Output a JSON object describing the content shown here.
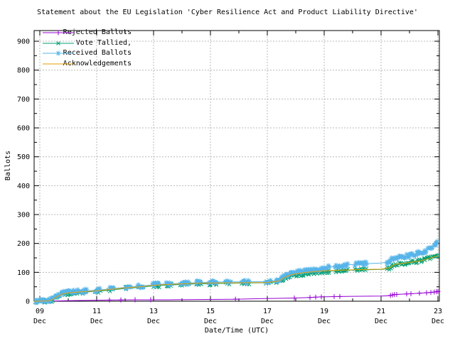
{
  "title": "Statement about the EU Legislation 'Cyber Resilience Act and Product Liability Directive'",
  "chart_data": {
    "type": "line",
    "title": "Statement about the EU Legislation 'Cyber Resilience Act and Product Liability Directive'",
    "xlabel": "Date/Time (UTC)",
    "ylabel": "Ballots",
    "x_unit": "day of December (UTC)",
    "xlim": [
      8.8,
      23.05
    ],
    "ylim": [
      0,
      937
    ],
    "grid": true,
    "grid_color": "#b8b8b8",
    "legend_position": "top-left",
    "x_ticks": [
      {
        "v": 9,
        "lines": [
          "09",
          "Dec"
        ]
      },
      {
        "v": 11,
        "lines": [
          "11",
          "Dec"
        ]
      },
      {
        "v": 13,
        "lines": [
          "13",
          "Dec"
        ]
      },
      {
        "v": 15,
        "lines": [
          "15",
          "Dec"
        ]
      },
      {
        "v": 17,
        "lines": [
          "17",
          "Dec"
        ]
      },
      {
        "v": 19,
        "lines": [
          "19",
          "Dec"
        ]
      },
      {
        "v": 21,
        "lines": [
          "21",
          "Dec"
        ]
      },
      {
        "v": 23,
        "lines": [
          "23",
          "Dec"
        ]
      }
    ],
    "x_minor_ticks": [
      10,
      12,
      14,
      16,
      18,
      20,
      22
    ],
    "y_ticks": [
      {
        "v": 0,
        "label": "0"
      },
      {
        "v": 100,
        "label": "100"
      },
      {
        "v": 200,
        "label": "200"
      },
      {
        "v": 300,
        "label": "300"
      },
      {
        "v": 400,
        "label": "400"
      },
      {
        "v": 500,
        "label": "500"
      },
      {
        "v": 600,
        "label": "600"
      },
      {
        "v": 700,
        "label": "700"
      },
      {
        "v": 800,
        "label": "800"
      },
      {
        "v": 900,
        "label": "900"
      }
    ],
    "y_minor_ticks": [
      50,
      150,
      250,
      350,
      450,
      550,
      650,
      750,
      850
    ],
    "marker_step_days": 0.035,
    "series": [
      {
        "name": "Rejected Ballots",
        "color": "#9400d3",
        "marker": "plus",
        "points": [
          [
            8.8,
            0
          ],
          [
            9.3,
            0
          ],
          [
            9.6,
            1
          ],
          [
            10,
            2
          ],
          [
            10.8,
            3
          ],
          [
            11.4,
            4
          ],
          [
            12.3,
            5
          ],
          [
            13.5,
            5
          ],
          [
            14.5,
            6
          ],
          [
            15.85,
            7
          ],
          [
            16.88,
            9
          ],
          [
            17.5,
            10
          ],
          [
            17.95,
            11
          ],
          [
            18.5,
            13
          ],
          [
            18.9,
            15
          ],
          [
            19.35,
            16
          ],
          [
            20,
            17
          ],
          [
            21,
            18
          ],
          [
            21.3,
            19
          ],
          [
            21.45,
            23
          ],
          [
            21.9,
            25
          ],
          [
            22.1,
            26
          ],
          [
            22.4,
            28
          ],
          [
            22.7,
            30
          ],
          [
            22.9,
            32
          ],
          [
            23,
            34
          ]
        ],
        "marker_x": [
          9.3,
          11.45,
          11.85,
          12.35,
          12.9,
          15.88,
          17.95,
          18.5,
          18.7,
          18.9,
          19.35,
          19.55,
          21.33,
          21.4,
          21.47,
          21.55,
          21.9,
          22.05,
          22.35,
          22.6,
          22.75,
          22.87,
          22.95,
          23.0
        ]
      },
      {
        "name": "Vote Tallied,",
        "color": "#009e73",
        "marker": "cross",
        "points": [
          [
            8.8,
            0
          ],
          [
            9.25,
            1
          ],
          [
            9.4,
            3
          ],
          [
            9.5,
            9
          ],
          [
            9.65,
            18
          ],
          [
            9.8,
            24
          ],
          [
            10,
            27
          ],
          [
            10.3,
            30
          ],
          [
            10.6,
            32
          ],
          [
            11,
            34
          ],
          [
            11.5,
            39
          ],
          [
            12,
            44
          ],
          [
            12.5,
            48
          ],
          [
            13,
            53
          ],
          [
            13.5,
            56
          ],
          [
            14,
            58
          ],
          [
            14.5,
            60
          ],
          [
            15,
            61
          ],
          [
            15.6,
            62
          ],
          [
            16.2,
            63
          ],
          [
            17,
            64
          ],
          [
            17.35,
            67
          ],
          [
            17.55,
            78
          ],
          [
            17.75,
            86
          ],
          [
            18,
            91
          ],
          [
            18.3,
            95
          ],
          [
            18.6,
            99
          ],
          [
            19,
            103
          ],
          [
            19.5,
            106
          ],
          [
            20,
            108
          ],
          [
            20.5,
            109
          ],
          [
            21,
            110
          ],
          [
            21.25,
            113
          ],
          [
            21.35,
            120
          ],
          [
            21.5,
            127
          ],
          [
            21.7,
            129
          ],
          [
            22,
            133
          ],
          [
            22.3,
            139
          ],
          [
            22.6,
            147
          ],
          [
            22.85,
            155
          ],
          [
            23,
            165
          ]
        ],
        "marker_segments": [
          [
            8.85,
            10.65
          ],
          [
            10.95,
            11.15
          ],
          [
            11.45,
            11.62
          ],
          [
            12.0,
            12.2
          ],
          [
            12.45,
            12.65
          ],
          [
            12.95,
            13.2
          ],
          [
            13.45,
            13.65
          ],
          [
            13.95,
            14.25
          ],
          [
            14.5,
            14.68
          ],
          [
            14.95,
            15.25
          ],
          [
            15.55,
            15.72
          ],
          [
            16.1,
            16.35
          ],
          [
            16.95,
            17.15
          ],
          [
            17.3,
            19.2
          ],
          [
            19.4,
            19.85
          ],
          [
            20.1,
            20.5
          ],
          [
            21.2,
            23.0
          ]
        ]
      },
      {
        "name": "Received Ballots",
        "color": "#56b4e9",
        "marker": "star",
        "points": [
          [
            8.8,
            0
          ],
          [
            9.25,
            2
          ],
          [
            9.4,
            5
          ],
          [
            9.5,
            12
          ],
          [
            9.65,
            22
          ],
          [
            9.8,
            28
          ],
          [
            10,
            31
          ],
          [
            10.3,
            34
          ],
          [
            10.6,
            36
          ],
          [
            11,
            38
          ],
          [
            11.5,
            43
          ],
          [
            12,
            48
          ],
          [
            12.5,
            52
          ],
          [
            13,
            57
          ],
          [
            13.5,
            60
          ],
          [
            14,
            62
          ],
          [
            14.5,
            64
          ],
          [
            15,
            66
          ],
          [
            15.6,
            67
          ],
          [
            16.2,
            67
          ],
          [
            17,
            68
          ],
          [
            17.35,
            72
          ],
          [
            17.55,
            84
          ],
          [
            17.75,
            93
          ],
          [
            18,
            100
          ],
          [
            18.3,
            104
          ],
          [
            18.6,
            108
          ],
          [
            19,
            115
          ],
          [
            19.3,
            120
          ],
          [
            19.7,
            125
          ],
          [
            20,
            127
          ],
          [
            20.3,
            129
          ],
          [
            21,
            132
          ],
          [
            21.25,
            136
          ],
          [
            21.35,
            143
          ],
          [
            21.5,
            150
          ],
          [
            21.7,
            153
          ],
          [
            22,
            158
          ],
          [
            22.3,
            166
          ],
          [
            22.6,
            176
          ],
          [
            22.8,
            186
          ],
          [
            23,
            203
          ]
        ],
        "marker_segments": [
          [
            8.85,
            10.65
          ],
          [
            10.95,
            11.15
          ],
          [
            11.45,
            11.62
          ],
          [
            12.0,
            12.2
          ],
          [
            12.45,
            12.65
          ],
          [
            12.95,
            13.2
          ],
          [
            13.45,
            13.65
          ],
          [
            13.95,
            14.25
          ],
          [
            14.5,
            14.68
          ],
          [
            14.95,
            15.25
          ],
          [
            15.55,
            15.72
          ],
          [
            16.1,
            16.35
          ],
          [
            16.95,
            17.15
          ],
          [
            17.3,
            19.2
          ],
          [
            19.4,
            19.85
          ],
          [
            20.1,
            20.5
          ],
          [
            21.2,
            23.0
          ]
        ]
      },
      {
        "name": "Acknowledgements",
        "color": "#e69f00",
        "marker": "none",
        "points": [
          [
            8.8,
            0
          ],
          [
            9.3,
            1
          ],
          [
            9.45,
            6
          ],
          [
            9.6,
            16
          ],
          [
            9.8,
            25
          ],
          [
            10,
            29
          ],
          [
            10.5,
            33
          ],
          [
            11,
            36
          ],
          [
            11.5,
            41
          ],
          [
            12,
            46
          ],
          [
            12.5,
            50
          ],
          [
            13,
            55
          ],
          [
            13.5,
            58
          ],
          [
            14,
            60
          ],
          [
            14.5,
            62
          ],
          [
            15,
            63
          ],
          [
            16,
            64
          ],
          [
            17,
            65
          ],
          [
            17.4,
            70
          ],
          [
            17.6,
            82
          ],
          [
            17.8,
            90
          ],
          [
            18,
            95
          ],
          [
            18.4,
            100
          ],
          [
            19,
            105
          ],
          [
            19.5,
            107
          ],
          [
            20,
            109
          ],
          [
            20.5,
            110
          ],
          [
            21,
            111
          ],
          [
            21.3,
            116
          ],
          [
            21.5,
            128
          ],
          [
            21.8,
            131
          ],
          [
            22,
            134
          ],
          [
            22.4,
            140
          ],
          [
            22.7,
            148
          ],
          [
            23,
            158
          ]
        ]
      }
    ]
  }
}
